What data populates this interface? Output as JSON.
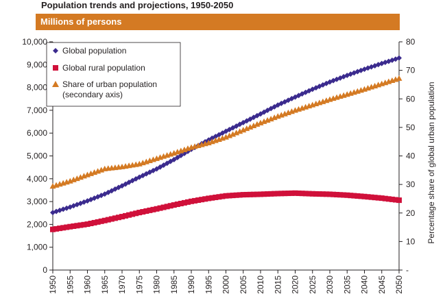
{
  "chart_data": {
    "type": "scatter",
    "title": "Population trends and projections, 1950-2050",
    "subtitle": "Millions of persons",
    "xlabel": "",
    "ylabel": "",
    "y2label": "Percentage share of global urban population",
    "xlim": [
      1950,
      2050
    ],
    "ylim": [
      0,
      10000
    ],
    "y2lim": [
      0,
      80
    ],
    "x_ticks": [
      "1950",
      "1955",
      "1960",
      "1965",
      "1970",
      "1975",
      "1980",
      "1985",
      "1990",
      "1995",
      "2000",
      "2005",
      "2010",
      "2015",
      "2020",
      "2025",
      "2030",
      "2035",
      "2040",
      "2045",
      "2050"
    ],
    "y_ticks": [
      "0",
      "1,000",
      "2,000",
      "3,000",
      "4,000",
      "5,000",
      "6,000",
      "7,000",
      "8,000",
      "9,000",
      "10,000"
    ],
    "y2_ticks": [
      "-",
      "10",
      "20",
      "30",
      "40",
      "50",
      "60",
      "70",
      "80"
    ],
    "legend_position": "top-left",
    "series": [
      {
        "name": "Global population",
        "axis": "primary",
        "marker": "diamond",
        "color": "#3b2b8e",
        "x": [
          1950,
          1955,
          1960,
          1965,
          1970,
          1975,
          1980,
          1985,
          1990,
          1995,
          2000,
          2005,
          2010,
          2015,
          2020,
          2025,
          2030,
          2035,
          2040,
          2045,
          2050
        ],
        "values": [
          2520,
          2760,
          3030,
          3330,
          3690,
          4070,
          4430,
          4840,
          5290,
          5700,
          6080,
          6460,
          6840,
          7230,
          7580,
          7920,
          8240,
          8530,
          8800,
          9050,
          9290
        ]
      },
      {
        "name": "Global rural population",
        "axis": "primary",
        "marker": "square",
        "color": "#d0103a",
        "x": [
          1950,
          1955,
          1960,
          1965,
          1970,
          1975,
          1980,
          1985,
          1990,
          1995,
          2000,
          2005,
          2010,
          2015,
          2020,
          2025,
          2030,
          2035,
          2040,
          2045,
          2050
        ],
        "values": [
          1780,
          1900,
          2010,
          2170,
          2340,
          2520,
          2680,
          2850,
          3010,
          3140,
          3250,
          3300,
          3320,
          3350,
          3370,
          3340,
          3320,
          3280,
          3220,
          3150,
          3060
        ]
      },
      {
        "name": "Share of urban population (secondary axis)",
        "legend_lines": [
          "Share of urban population",
          "(secondary axis)"
        ],
        "axis": "secondary",
        "marker": "triangle",
        "color": "#d47a23",
        "x": [
          1950,
          1955,
          1960,
          1965,
          1970,
          1975,
          1980,
          1985,
          1990,
          1995,
          2000,
          2005,
          2010,
          2015,
          2020,
          2025,
          2030,
          2035,
          2040,
          2045,
          2050
        ],
        "values": [
          29.4,
          31.2,
          33.4,
          35.5,
          36.2,
          37.2,
          39.1,
          41.0,
          43.0,
          44.6,
          46.6,
          49.1,
          51.6,
          53.9,
          56.0,
          57.9,
          59.8,
          61.6,
          63.4,
          65.3,
          67.2
        ]
      }
    ]
  }
}
